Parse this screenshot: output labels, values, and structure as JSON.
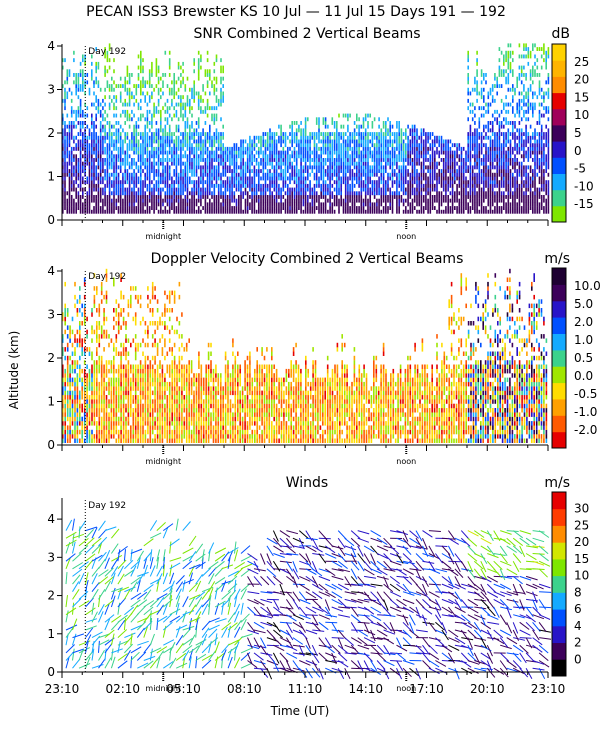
{
  "page_title": "PECAN ISS3 Brewster KS  10 Jul — 11 Jul 15 Days 191 — 192",
  "y_axis_label": "Altitude (km)",
  "x_axis_label": "Time (UT)",
  "x_tick_labels": [
    "23:10",
    "02:10",
    "05:10",
    "08:10",
    "11:10",
    "14:10",
    "17:10",
    "20:10",
    "23:10"
  ],
  "day_marker": "Day 192",
  "midnight_label": "midnight",
  "noon_label": "noon",
  "colors": {
    "snr_scale": [
      "#7ee600",
      "#3cd28c",
      "#14aaff",
      "#0050ff",
      "#2814c8",
      "#3c005a",
      "#a0005a",
      "#e60000",
      "#ff8c00",
      "#ffb400",
      "#ffd200"
    ],
    "doppler_scale": [
      "#e60000",
      "#ff5a00",
      "#ffa000",
      "#ffdc00",
      "#a0e600",
      "#3cd28c",
      "#14aaff",
      "#0050ff",
      "#2814c8",
      "#3c005a",
      "#1e0032"
    ],
    "wind_scale": [
      "#000000",
      "#3c005a",
      "#2814c8",
      "#0050ff",
      "#14aaff",
      "#3cd28c",
      "#7ee600",
      "#d2e600",
      "#ff8c00",
      "#ff3c00",
      "#e60000"
    ]
  },
  "chart_data": [
    {
      "type": "heatmap",
      "title": "SNR Combined 2 Vertical Beams",
      "units": "dB",
      "colorbar_ticks": [
        "25",
        "20",
        "15",
        "10",
        "5",
        "0",
        "-5",
        "-10",
        "-15"
      ],
      "colorbar_range": [
        -17.5,
        27.5
      ],
      "ylim": [
        0,
        4
      ],
      "y_ticks": [
        "0",
        "1",
        "2",
        "3",
        "4"
      ],
      "time_range_hours": [
        0,
        24
      ],
      "day_marker_time": 1.15,
      "midnight_time": 5.0,
      "noon_time": 17.0
    },
    {
      "type": "heatmap",
      "title": "Doppler Velocity Combined 2 Vertical Beams",
      "units": "m/s",
      "colorbar_ticks": [
        "10.0",
        "5.0",
        "2.0",
        "1.0",
        "0.5",
        "0.0",
        "-0.5",
        "-1.0",
        "-2.0"
      ],
      "ylim": [
        0,
        4
      ],
      "y_ticks": [
        "0",
        "1",
        "2",
        "3",
        "4"
      ],
      "time_range_hours": [
        0,
        24
      ],
      "day_marker_time": 1.15,
      "midnight_time": 5.0,
      "noon_time": 17.0
    },
    {
      "type": "scatter",
      "title": "Winds",
      "units": "m/s",
      "colorbar_ticks": [
        "30",
        "25",
        "20",
        "15",
        "10",
        "8",
        "6",
        "4",
        "2",
        "0"
      ],
      "ylim": [
        0,
        4.5
      ],
      "y_ticks": [
        "0",
        "1",
        "2",
        "3",
        "4"
      ],
      "time_range_hours": [
        0,
        24
      ],
      "day_marker_time": 1.15,
      "midnight_time": 5.0,
      "noon_time": 17.0
    }
  ]
}
